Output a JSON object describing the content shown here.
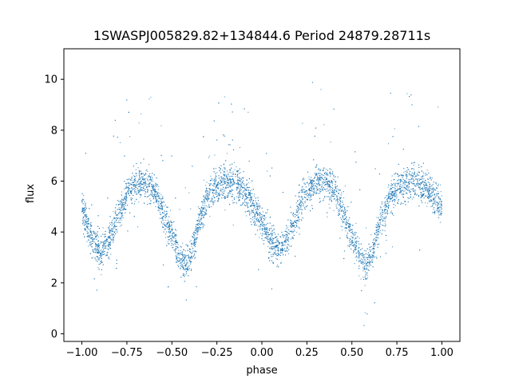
{
  "chart_data": {
    "type": "scatter",
    "title": "1SWASPJ005829.82+134844.6 Period 24879.28711s",
    "xlabel": "phase",
    "ylabel": "flux",
    "xlim": [
      -1.1,
      1.1
    ],
    "ylim": [
      -0.3,
      11.2
    ],
    "xticks": [
      -1.0,
      -0.75,
      -0.5,
      -0.25,
      0.0,
      0.25,
      0.5,
      0.75,
      1.0
    ],
    "xtick_labels": [
      "−1.00",
      "−0.75",
      "−0.50",
      "−0.25",
      "0.00",
      "0.25",
      "0.50",
      "0.75",
      "1.00"
    ],
    "yticks": [
      0,
      2,
      4,
      6,
      8,
      10
    ],
    "ytick_labels": [
      "0",
      "2",
      "4",
      "6",
      "8",
      "10"
    ],
    "grid": false,
    "series": [
      {
        "color": "#1f77b4",
        "x_range": [
          -1.0,
          1.0
        ],
        "light_curve_profile": {
          "phase": [
            -1.0,
            -0.95,
            -0.9,
            -0.85,
            -0.8,
            -0.75,
            -0.7,
            -0.65,
            -0.6,
            -0.55,
            -0.5,
            -0.45,
            -0.42,
            -0.38,
            -0.35,
            -0.3,
            -0.25,
            -0.2,
            -0.15,
            -0.1,
            -0.05,
            0.0,
            0.05,
            0.1,
            0.15,
            0.2,
            0.25,
            0.3,
            0.35,
            0.4,
            0.45,
            0.5,
            0.55,
            0.58,
            0.62,
            0.65,
            0.7,
            0.75,
            0.8,
            0.85,
            0.9,
            0.95,
            1.0
          ],
          "flux_center": [
            5.0,
            3.8,
            3.2,
            3.6,
            4.6,
            5.5,
            5.9,
            6.0,
            5.7,
            4.8,
            3.8,
            2.9,
            2.6,
            3.4,
            4.4,
            5.4,
            5.8,
            6.0,
            5.9,
            5.6,
            5.0,
            4.4,
            3.6,
            3.2,
            3.8,
            4.8,
            5.6,
            6.0,
            6.0,
            5.7,
            4.8,
            3.8,
            3.0,
            2.6,
            3.3,
            4.2,
            5.2,
            5.7,
            5.9,
            5.9,
            5.8,
            5.4,
            5.0
          ],
          "flux_spread": 0.55
        }
      }
    ]
  }
}
